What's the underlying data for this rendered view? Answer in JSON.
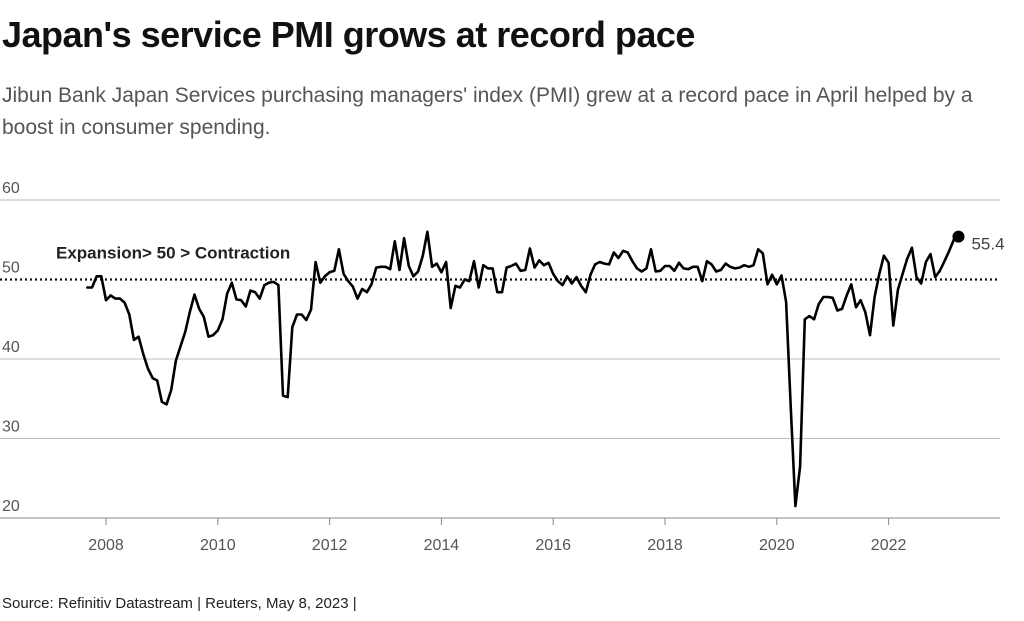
{
  "title": "Japan's service PMI grows at record pace",
  "subtitle": "Jibun Bank Japan Services purchasing managers' index (PMI) grew at a record pace in April helped by a boost in consumer spending.",
  "source": "Source: Refinitiv Datastream | Reuters, May 8, 2023 |",
  "chart_data": {
    "type": "line",
    "title": "Japan's service PMI grows at record pace",
    "xlabel": "",
    "ylabel": "",
    "ylim": [
      20,
      60
    ],
    "y_ticks": [
      "60",
      "50",
      "40",
      "30",
      "20"
    ],
    "x_ticks": [
      "2008",
      "2010",
      "2012",
      "2014",
      "2016",
      "2018",
      "2020",
      "2022"
    ],
    "grid": "horizontal",
    "reference_line": {
      "value": 50,
      "label": "Expansion> 50 > Contraction",
      "style": "dotted"
    },
    "end_label": "55.4",
    "line_color": "#000000",
    "series": [
      {
        "name": "",
        "start": "2007-09",
        "frequency": "monthly",
        "values": [
          49.0,
          49.0,
          50.4,
          50.4,
          47.4,
          48.0,
          47.6,
          47.6,
          47.1,
          45.6,
          42.4,
          42.8,
          40.6,
          38.8,
          37.6,
          37.3,
          34.6,
          34.3,
          36.1,
          39.8,
          41.6,
          43.4,
          45.9,
          48.1,
          46.3,
          45.3,
          42.8,
          43.0,
          43.6,
          45.0,
          48.2,
          49.6,
          47.5,
          47.4,
          46.6,
          48.6,
          48.4,
          47.6,
          49.3,
          49.6,
          49.7,
          49.3,
          35.4,
          35.2,
          44.0,
          45.6,
          45.6,
          44.9,
          46.2,
          52.2,
          49.6,
          50.4,
          50.9,
          51.1,
          53.8,
          50.7,
          49.8,
          49.1,
          47.6,
          48.8,
          48.4,
          49.4,
          51.5,
          51.6,
          51.6,
          51.3,
          54.8,
          51.2,
          55.2,
          51.7,
          50.4,
          51.0,
          53.0,
          56.0,
          51.6,
          52.0,
          50.9,
          52.2,
          46.4,
          49.2,
          49.0,
          50.0,
          49.8,
          52.3,
          49.0,
          51.8,
          51.4,
          51.4,
          48.4,
          48.4,
          51.5,
          51.7,
          52.0,
          51.1,
          51.2,
          53.9,
          51.5,
          52.4,
          51.8,
          52.1,
          50.7,
          49.8,
          49.3,
          50.4,
          49.5,
          50.3,
          49.2,
          48.4,
          50.6,
          51.9,
          52.2,
          52.0,
          51.9,
          53.4,
          52.7,
          53.6,
          53.4,
          52.3,
          51.4,
          51.0,
          51.4,
          53.8,
          51.0,
          51.1,
          51.7,
          51.7,
          51.1,
          52.1,
          51.4,
          51.3,
          51.6,
          51.6,
          49.8,
          52.3,
          51.9,
          51.0,
          51.2,
          52.0,
          51.6,
          51.4,
          51.5,
          51.8,
          51.6,
          51.8,
          53.8,
          53.3,
          49.4,
          50.6,
          49.4,
          50.5,
          47.2,
          33.8,
          21.5,
          26.5,
          45.0,
          45.4,
          45.0,
          46.9,
          47.8,
          47.8,
          47.7,
          46.1,
          46.3,
          48.0,
          49.4,
          46.5,
          47.4,
          45.9,
          43.0,
          47.8,
          50.7,
          53.0,
          52.1,
          44.2,
          48.7,
          50.7,
          52.6,
          54.0,
          50.3,
          49.5,
          52.2,
          53.2,
          50.3,
          51.1,
          52.3,
          53.6,
          55.0,
          55.4
        ]
      }
    ]
  }
}
